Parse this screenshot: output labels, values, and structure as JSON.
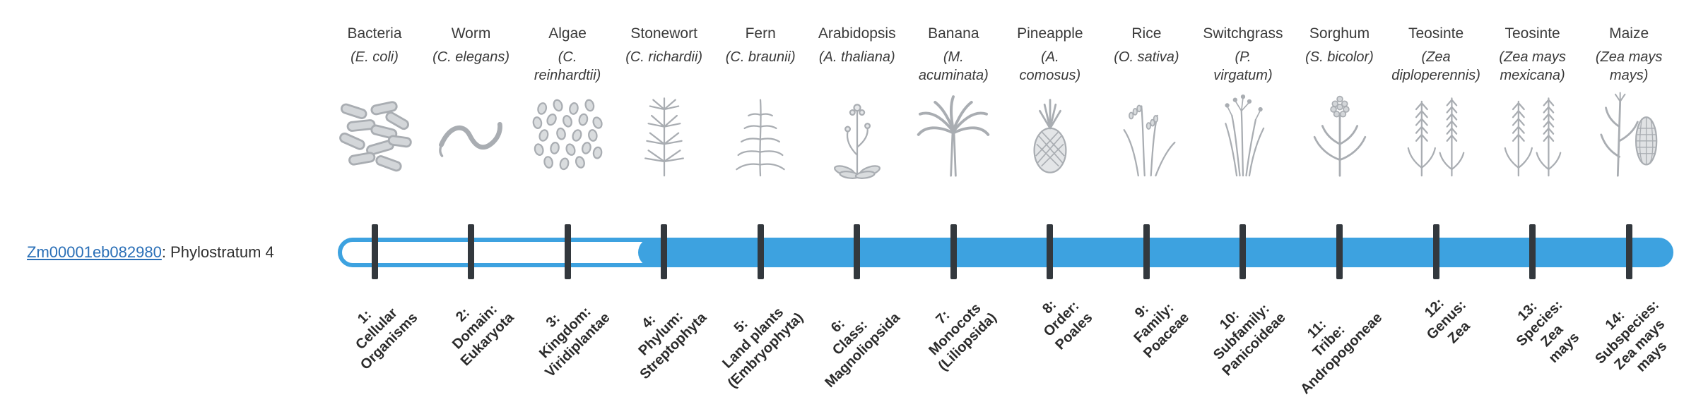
{
  "gene": {
    "link_text": "Zm00001eb082980",
    "suffix": ": Phylostratum 4"
  },
  "highlight": {
    "phylostratum": 4,
    "bar_filled_from": 4,
    "bar_filled_to": 14
  },
  "colors": {
    "bar_blue": "#3da2e0",
    "tick_dark": "#33383d",
    "link_blue": "#2a6fb7",
    "art_gray": "#a9adb2"
  },
  "phylostrata": [
    {
      "num": 1,
      "common": "Bacteria",
      "scientific": "(E. coli)",
      "icon": "bacteria-illustration",
      "axis_label": "1:\nCellular\nOrganisms"
    },
    {
      "num": 2,
      "common": "Worm",
      "scientific": "(C. elegans)",
      "icon": "worm-illustration",
      "axis_label": "2:\nDomain:\nEukaryota"
    },
    {
      "num": 3,
      "common": "Algae",
      "scientific": "(C.\nreinhardtii)",
      "icon": "algae-illustration",
      "axis_label": "3:\nKingdom:\nViridiplantae"
    },
    {
      "num": 4,
      "common": "Stonewort",
      "scientific": "(C. richardii)",
      "icon": "stonewort-illustration",
      "axis_label": "4:\nPhylum:\nStreptophyta"
    },
    {
      "num": 5,
      "common": "Fern",
      "scientific": "(C. braunii)",
      "icon": "fern-illustration",
      "axis_label": "5:\nLand plants\n(Embryophyta)"
    },
    {
      "num": 6,
      "common": "Arabidopsis",
      "scientific": "(A. thaliana)",
      "icon": "arabidopsis-illustration",
      "axis_label": "6:\nClass:\nMagnoliopsida"
    },
    {
      "num": 7,
      "common": "Banana",
      "scientific": "(M.\nacuminata)",
      "icon": "banana-illustration",
      "axis_label": "7:\nMonocots\n(Liliopsida)"
    },
    {
      "num": 8,
      "common": "Pineapple",
      "scientific": "(A.\ncomosus)",
      "icon": "pineapple-illustration",
      "axis_label": "8:\nOrder:\nPoales"
    },
    {
      "num": 9,
      "common": "Rice",
      "scientific": "(O. sativa)",
      "icon": "rice-illustration",
      "axis_label": "9:\nFamily:\nPoaceae"
    },
    {
      "num": 10,
      "common": "Switchgrass",
      "scientific": "(P.\nvirgatum)",
      "icon": "switchgrass-illustration",
      "axis_label": "10:\nSubfamily:\nPanicoideae"
    },
    {
      "num": 11,
      "common": "Sorghum",
      "scientific": "(S. bicolor)",
      "icon": "sorghum-illustration",
      "axis_label": "11:\nTribe:\nAndropogoneae"
    },
    {
      "num": 12,
      "common": "Teosinte",
      "scientific": "(Zea\ndiploperennis)",
      "icon": "teosinte-illustration",
      "axis_label": "12:\nGenus:\nZea"
    },
    {
      "num": 13,
      "common": "Teosinte",
      "scientific": "(Zea mays\nmexicana)",
      "icon": "teosinte-illustration",
      "axis_label": "13:\nSpecies:\nZea\nmays"
    },
    {
      "num": 14,
      "common": "Maize",
      "scientific": "(Zea mays\nmays)",
      "icon": "maize-illustration",
      "axis_label": "14:\nSubspecies:\nZea mays\nmays"
    }
  ]
}
